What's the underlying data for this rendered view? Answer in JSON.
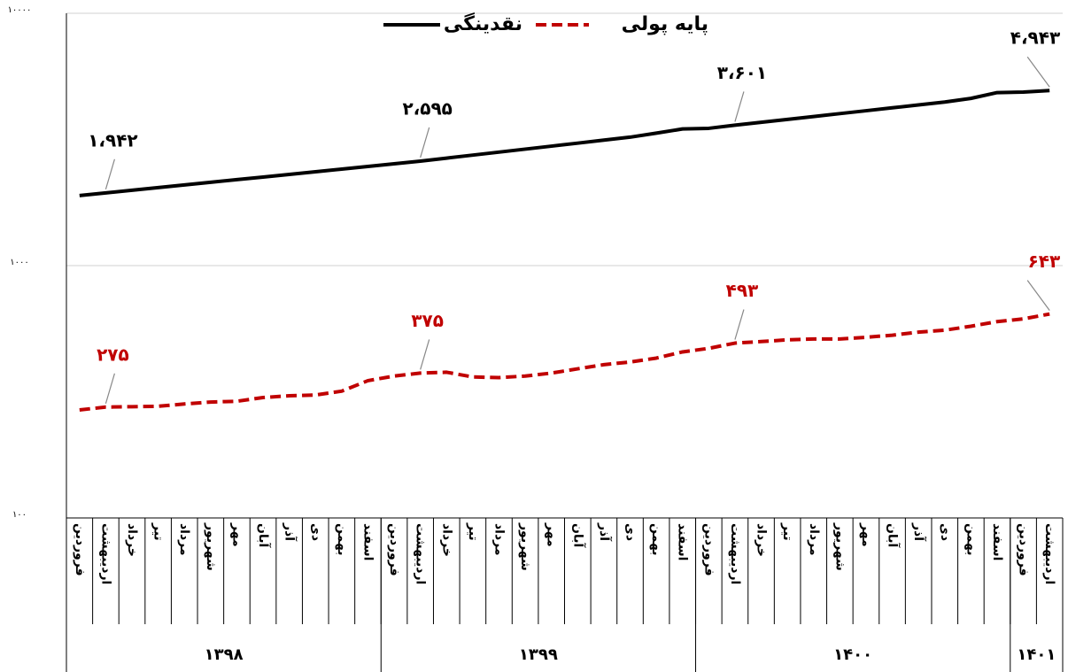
{
  "chart_data": {
    "type": "line",
    "ylog": true,
    "ylim": [
      100,
      10000
    ],
    "yticks": [
      {
        "value": 100,
        "label": "۱۰۰"
      },
      {
        "value": 1000,
        "label": "۱۰۰۰"
      },
      {
        "value": 10000,
        "label": "۱۰۰۰۰"
      }
    ],
    "legend": "top",
    "categories": [
      "فروردین",
      "اردیبهشت",
      "خرداد",
      "تیر",
      "مرداد",
      "شهریور",
      "مهر",
      "آبان",
      "آذر",
      "دی",
      "بهمن",
      "اسفند",
      "فروردین",
      "اردیبهشت",
      "خرداد",
      "تیر",
      "مرداد",
      "شهریور",
      "مهر",
      "آبان",
      "آذر",
      "دی",
      "بهمن",
      "اسفند",
      "فروردین",
      "اردیبهشت",
      "خرداد",
      "تیر",
      "مرداد",
      "شهریور",
      "مهر",
      "آبان",
      "آذر",
      "دی",
      "بهمن",
      "اسفند",
      "فروردین",
      "اردیبهشت"
    ],
    "groups": [
      {
        "label": "۱۳۹۸",
        "size": 12
      },
      {
        "label": "۱۳۹۹",
        "size": 12
      },
      {
        "label": "۱۴۰۰",
        "size": 12
      },
      {
        "label": "۱۴۰۱",
        "size": 2
      }
    ],
    "series": [
      {
        "name": "نقدینگی",
        "color": "#000000",
        "style": "solid",
        "values": [
          1895,
          1942,
          1989,
          2038,
          2088,
          2139,
          2191,
          2244,
          2299,
          2355,
          2412,
          2471,
          2532,
          2595,
          2667,
          2741,
          2817,
          2895,
          2975,
          3057,
          3142,
          3229,
          3350,
          3480,
          3500,
          3601,
          3698,
          3797,
          3899,
          4003,
          4110,
          4220,
          4333,
          4449,
          4600,
          4850,
          4870,
          4943
        ],
        "value_labels": [
          null,
          "۱،۹۴۲",
          null,
          null,
          null,
          null,
          null,
          null,
          null,
          null,
          null,
          null,
          null,
          "۲،۵۹۵",
          null,
          null,
          null,
          null,
          null,
          null,
          null,
          null,
          null,
          null,
          null,
          "۳،۶۰۱",
          null,
          null,
          null,
          null,
          null,
          null,
          null,
          null,
          null,
          null,
          null,
          "۴،۹۴۳"
        ]
      },
      {
        "name": "پایه پولی",
        "color": "#c00000",
        "style": "dashed",
        "values": [
          268,
          275,
          276,
          277,
          283,
          288,
          290,
          300,
          305,
          307,
          318,
          350,
          365,
          375,
          378,
          362,
          360,
          365,
          375,
          390,
          405,
          415,
          430,
          455,
          470,
          493,
          500,
          508,
          512,
          512,
          520,
          530,
          545,
          555,
          575,
          600,
          615,
          643
        ],
        "value_labels": [
          null,
          "۲۷۵",
          null,
          null,
          null,
          null,
          null,
          null,
          null,
          null,
          null,
          null,
          null,
          "۳۷۵",
          null,
          null,
          null,
          null,
          null,
          null,
          null,
          null,
          null,
          null,
          null,
          "۴۹۳",
          null,
          null,
          null,
          null,
          null,
          null,
          null,
          null,
          null,
          null,
          null,
          "۶۴۳"
        ]
      }
    ]
  }
}
